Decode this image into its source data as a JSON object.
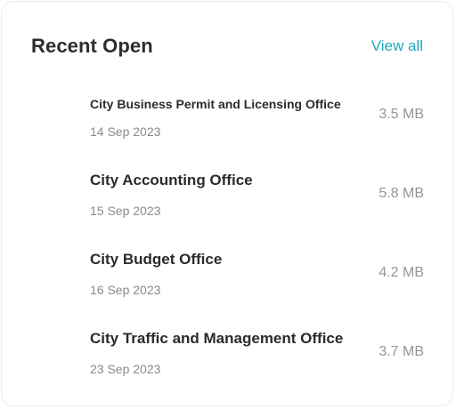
{
  "header": {
    "title": "Recent Open",
    "view_all_label": "View all"
  },
  "files": [
    {
      "name": "City Business Permit and Licensing Office",
      "date": "14 Sep 2023",
      "size": "3.5 MB"
    },
    {
      "name": "City Accounting Office",
      "date": "15 Sep 2023",
      "size": "5.8 MB"
    },
    {
      "name": "City Budget Office",
      "date": "16 Sep 2023",
      "size": "4.2 MB"
    },
    {
      "name": "City Traffic and Management Office",
      "date": "23 Sep 2023",
      "size": "3.7 MB"
    }
  ],
  "colors": {
    "accent": "#1fa8b8",
    "title": "#2d2d2d",
    "muted": "#8a8a8a"
  }
}
